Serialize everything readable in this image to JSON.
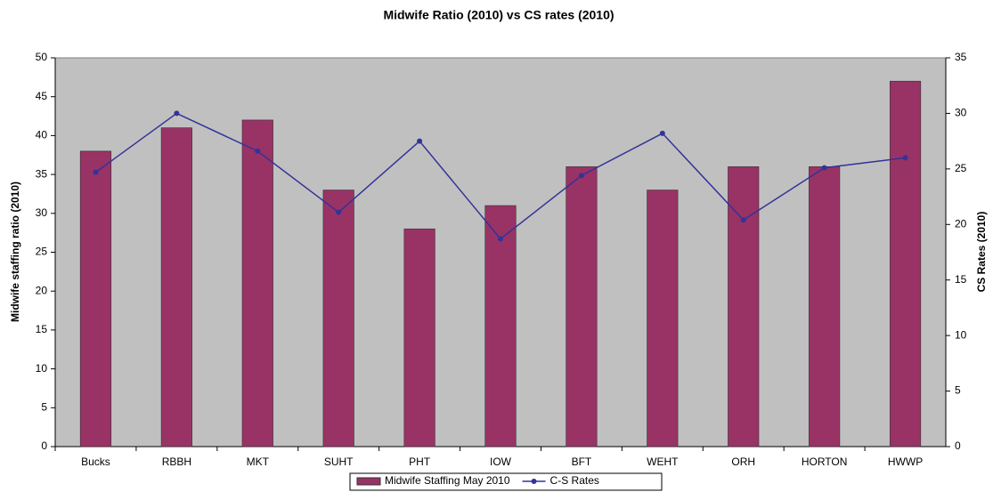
{
  "chart_data": {
    "type": "bar",
    "title": "Midwife Ratio (2010) vs CS rates (2010)",
    "y_label": "Midwife staffing  ratio (2010)",
    "y2_label": "CS Rates (2010)",
    "categories": [
      "Bucks",
      "RBBH",
      "MKT",
      "SUHT",
      "PHT",
      "IOW",
      "BFT",
      "WEHT",
      "ORH",
      "HORTON",
      "HWWP"
    ],
    "series": [
      {
        "name": "Midwife Staffing May 2010",
        "type": "bar",
        "color": "#993366",
        "values": [
          38,
          41,
          42,
          33,
          28,
          31,
          36,
          33,
          36,
          36,
          47
        ]
      },
      {
        "name": "C-S Rates",
        "type": "line",
        "axis": "y2",
        "color": "#333399",
        "values": [
          24.7,
          30,
          26.6,
          21.1,
          27.5,
          18.7,
          24.4,
          28.2,
          20.4,
          25.1,
          26
        ]
      }
    ],
    "ylim": [
      0,
      50
    ],
    "yticks": [
      0,
      5,
      10,
      15,
      20,
      25,
      30,
      35,
      40,
      45,
      50
    ],
    "y2lim": [
      0,
      35
    ],
    "y2ticks": [
      0,
      5,
      10,
      15,
      20,
      25,
      30,
      35
    ],
    "legend": "bottom"
  }
}
